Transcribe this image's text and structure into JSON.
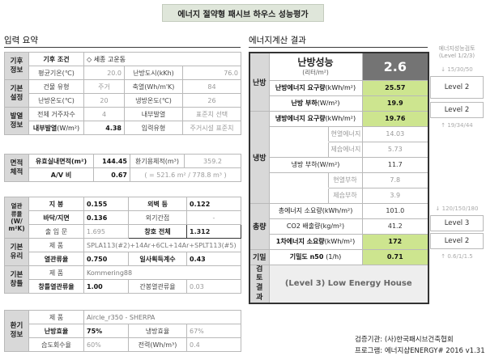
{
  "title": "에너지 절약형 패시브 하우스 성능평가",
  "input": {
    "title": "입력 요약",
    "climate": {
      "cat": "기후\n정보",
      "cond_label": "기후 조건",
      "cond_value": "◇ 세종 고운동",
      "avg_temp_label": "평균기온(℃)",
      "avg_temp": "20.0",
      "heat_dd_label": "난방도시(kKh)",
      "heat_dd": "76.0"
    },
    "basic": {
      "cat": "기본\n설정",
      "type_label": "건물 유형",
      "type_value": "주거",
      "cool_label": "축열(Wh/m'K)",
      "cool_value": "84",
      "heat_temp_label": "난방온도(℃)",
      "heat_temp": "20",
      "cool_temp_label": "냉방온도(℃)",
      "cool_temp": "26"
    },
    "internal": {
      "cat": "발열\n정보",
      "residents_label": "전체 거주자수",
      "residents": "4",
      "int_heat_label": "내부발열",
      "int_heat_sub": "입력유형",
      "std_select": "표준치 선택",
      "res_std": "주거시설 표준치",
      "int_gain_label": "내부발열",
      "int_gain_unit": "(W/m²)",
      "int_gain": "4.38"
    },
    "area": {
      "cat": "면적\n체적",
      "floor_label": "유효실내면적(m²)",
      "floor": "144.45",
      "vent_label": "환기용체적(m³)",
      "vent": "359.2",
      "av_label": "A/V 비",
      "av": "0.67",
      "av_formula": "( = 521.6 m² / 778.8 m³ )"
    },
    "thermal": {
      "cat": "열관\n류율\n(W/\nm²K)",
      "wall_label": "지   붕",
      "wall": "0.155",
      "outer_label": "외벽 등",
      "outer": "0.122",
      "floor_label": "바닥/지면",
      "floor": "0.136",
      "ext_label": "외기간접",
      "ext": "-",
      "door_label": "출 입 문",
      "door": "1.695",
      "win_label": "창호 전체",
      "win": "1.312"
    },
    "glass": {
      "cat": "기본\n유리",
      "product_label": "제   품",
      "product": "SPLA113(#2)+14Ar+6CL+14Ar+SPLT113(#5)",
      "u_label": "열관류율",
      "u": "0.750",
      "shgc_label": "일사획득계수",
      "shgc": "0.43"
    },
    "frame": {
      "cat": "기본\n창틀",
      "product_label": "제   품",
      "product": "Kommering88",
      "u_label": "창틀열관류율",
      "u": "1.00",
      "psi_label": "간봉열관류율",
      "psi": "0.03"
    },
    "hrv": {
      "cat": "환기\n정보",
      "product_label": "제   품",
      "product": "Aircle_r350 - SHERPA",
      "heat_eff_label": "난방효율",
      "heat_eff": "75%",
      "cool_eff_label": "냉방효율",
      "cool_eff": "67%",
      "humid_label": "습도회수율",
      "humid": "60%",
      "power_label": "전력(Wh/m³)",
      "power": "0.4"
    }
  },
  "result": {
    "title": "에너지계산 결과",
    "heat_perf": "난방성능",
    "liter_unit": "(리터/m²)",
    "liter_value": "2.6",
    "heat_cat": "난방",
    "heat_demand_label": "난방에너지 요구량",
    "heat_demand_unit": "(kWh/m²)",
    "heat_demand": "25.57",
    "heat_load_label": "난방 부하",
    "heat_load_unit": "(W/m²)",
    "heat_load": "19.9",
    "cool_cat": "냉방",
    "cool_demand_label": "냉방에너지 요구량",
    "cool_demand_unit": "(kWh/m²)",
    "cool_demand": "19.76",
    "sensible_label": "현열에너지",
    "sensible": "14.03",
    "latent_label": "제습에너지",
    "latent": "5.73",
    "cool_load_label": "냉방 부하",
    "cool_load_unit": "(W/m²)",
    "cool_load": "11.7",
    "sens_load_label": "현열부하",
    "sens_load": "7.8",
    "lat_load_label": "제습부하",
    "lat_load": "3.9",
    "total_cat": "총량",
    "total_energy_label": "총에너지 소요량(kWh/m²)",
    "total_energy": "101.0",
    "co2_label": "CO2 배출량(kg/m²)",
    "co2": "41.2",
    "primary_label": "1차에너지 소요량",
    "primary_unit": "(kWh/m²)",
    "primary": "172",
    "airtight_cat": "기밀",
    "airtight_label": "기밀도 n50",
    "airtight_unit": "(1/h)",
    "airtight": "0.71",
    "review_cat": "검토\n결과",
    "review": "(Level 3) Low Energy House"
  },
  "evaluation": {
    "header": "에너지성능검토\n(Level 1/2/3)",
    "heat_note": "↓ 15/30/50",
    "heat_level": "Level 2",
    "cool_level": "Level 2",
    "cool_note": "↑ 19/34/44",
    "primary_note": "↓ 120/150/180",
    "primary_level": "Level 3",
    "airtight_level": "Level 2",
    "airtight_note": "↑ 0.6/1/1.5"
  },
  "footer": {
    "org": "검증기관: (사)한국패시브건축협회",
    "program": "프로그램: 에너지샵ENERGY# 2016 v1.31"
  }
}
